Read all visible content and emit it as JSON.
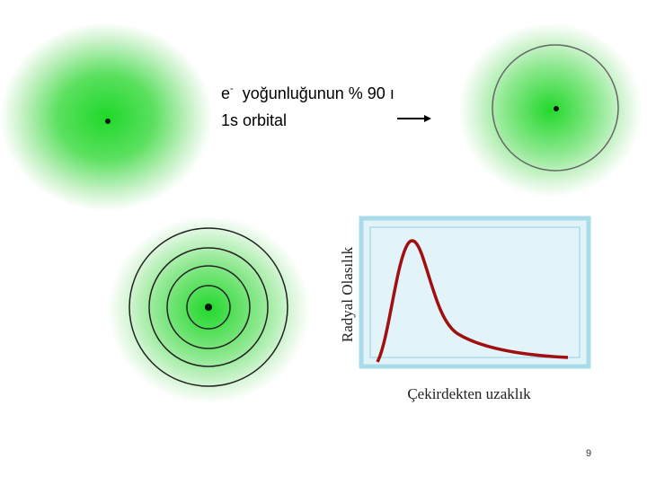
{
  "slide": {
    "caption": {
      "electron": "e",
      "charge": "-",
      "density": "yoğunluğunun % 90 ı",
      "orbital": "1s orbital"
    },
    "plot": {
      "y_label": "Radyal Olasılık",
      "x_label": "Çekirdekten uzaklık"
    },
    "page_number": "9"
  }
}
